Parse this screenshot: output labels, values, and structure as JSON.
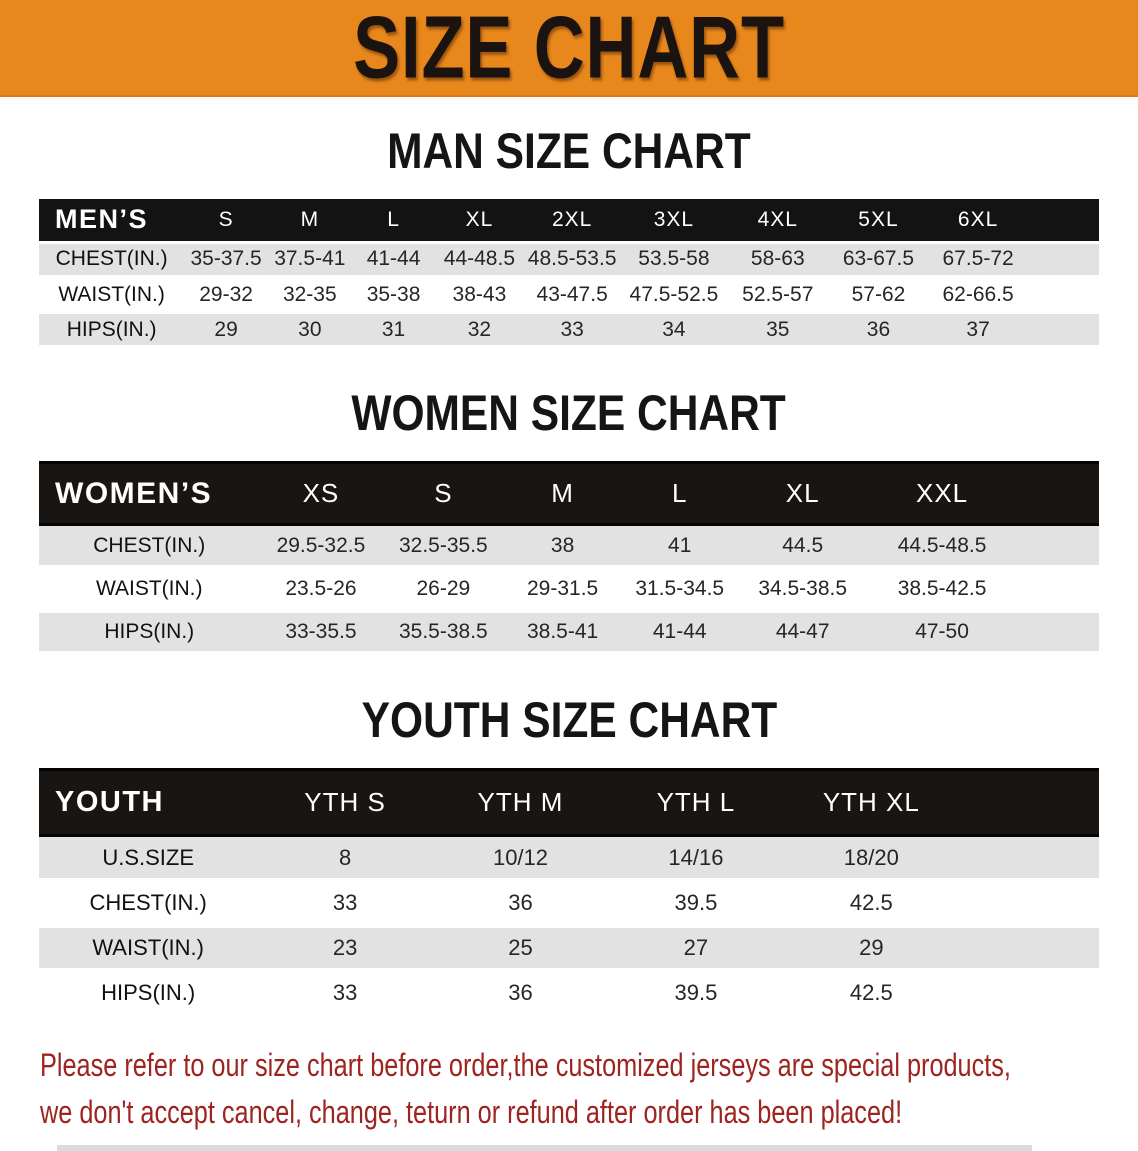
{
  "colors": {
    "banner_bg": "#E8871C",
    "banner_edge": "#D97B10",
    "header_bar": "#131313",
    "header_bar_framed": "#181512",
    "row_stripe": "#E2E2E2",
    "row_white": "#FFFFFF",
    "title_text": "#151515",
    "cell_text": "#262626",
    "footer_text": "#9E2420"
  },
  "banner": {
    "title": "SIZE CHART"
  },
  "sections": [
    {
      "title": "MAN SIZE CHART",
      "table": {
        "header_label": "MEN’S",
        "sizes": [
          "S",
          "M",
          "L",
          "XL",
          "2XL",
          "3XL",
          "4XL",
          "5XL",
          "6XL"
        ],
        "rows": [
          {
            "label": "CHEST(IN.)",
            "values": [
              "35-37.5",
              "37.5-41",
              "41-44",
              "44-48.5",
              "48.5-53.5",
              "53.5-58",
              "58-63",
              "63-67.5",
              "67.5-72"
            ]
          },
          {
            "label": "WAIST(IN.)",
            "values": [
              "29-32",
              "32-35",
              "35-38",
              "38-43",
              "43-47.5",
              "47.5-52.5",
              "52.5-57",
              "57-62",
              "62-66.5"
            ]
          },
          {
            "label": "HIPS(IN.)",
            "values": [
              "29",
              "30",
              "31",
              "32",
              "33",
              "34",
              "35",
              "36",
              "37"
            ]
          }
        ]
      }
    },
    {
      "title": "WOMEN SIZE CHART",
      "table": {
        "header_label": "WOMEN’S",
        "sizes": [
          "XS",
          "S",
          "M",
          "L",
          "XL",
          "XXL"
        ],
        "rows": [
          {
            "label": "CHEST(IN.)",
            "values": [
              "29.5-32.5",
              "32.5-35.5",
              "38",
              "41",
              "44.5",
              "44.5-48.5"
            ]
          },
          {
            "label": "WAIST(IN.)",
            "values": [
              "23.5-26",
              "26-29",
              "29-31.5",
              "31.5-34.5",
              "34.5-38.5",
              "38.5-42.5"
            ]
          },
          {
            "label": "HIPS(IN.)",
            "values": [
              "33-35.5",
              "35.5-38.5",
              "38.5-41",
              "41-44",
              "44-47",
              "47-50"
            ]
          }
        ]
      }
    },
    {
      "title": "YOUTH SIZE CHART",
      "table": {
        "header_label": "YOUTH",
        "sizes": [
          "YTH S",
          "YTH M",
          "YTH L",
          "YTH XL"
        ],
        "rows": [
          {
            "label": "U.S.SIZE",
            "values": [
              "8",
              "10/12",
              "14/16",
              "18/20"
            ]
          },
          {
            "label": "CHEST(IN.)",
            "values": [
              "33",
              "36",
              "39.5",
              "42.5"
            ]
          },
          {
            "label": "WAIST(IN.)",
            "values": [
              "23",
              "25",
              "27",
              "29"
            ]
          },
          {
            "label": "HIPS(IN.)",
            "values": [
              "33",
              "36",
              "39.5",
              "42.5"
            ]
          }
        ]
      }
    }
  ],
  "footer": {
    "line1": "Please refer to our size chart before order,the customized jerseys are special products,",
    "line2": "we don't accept cancel, change, teturn or refund after order has been placed!"
  }
}
